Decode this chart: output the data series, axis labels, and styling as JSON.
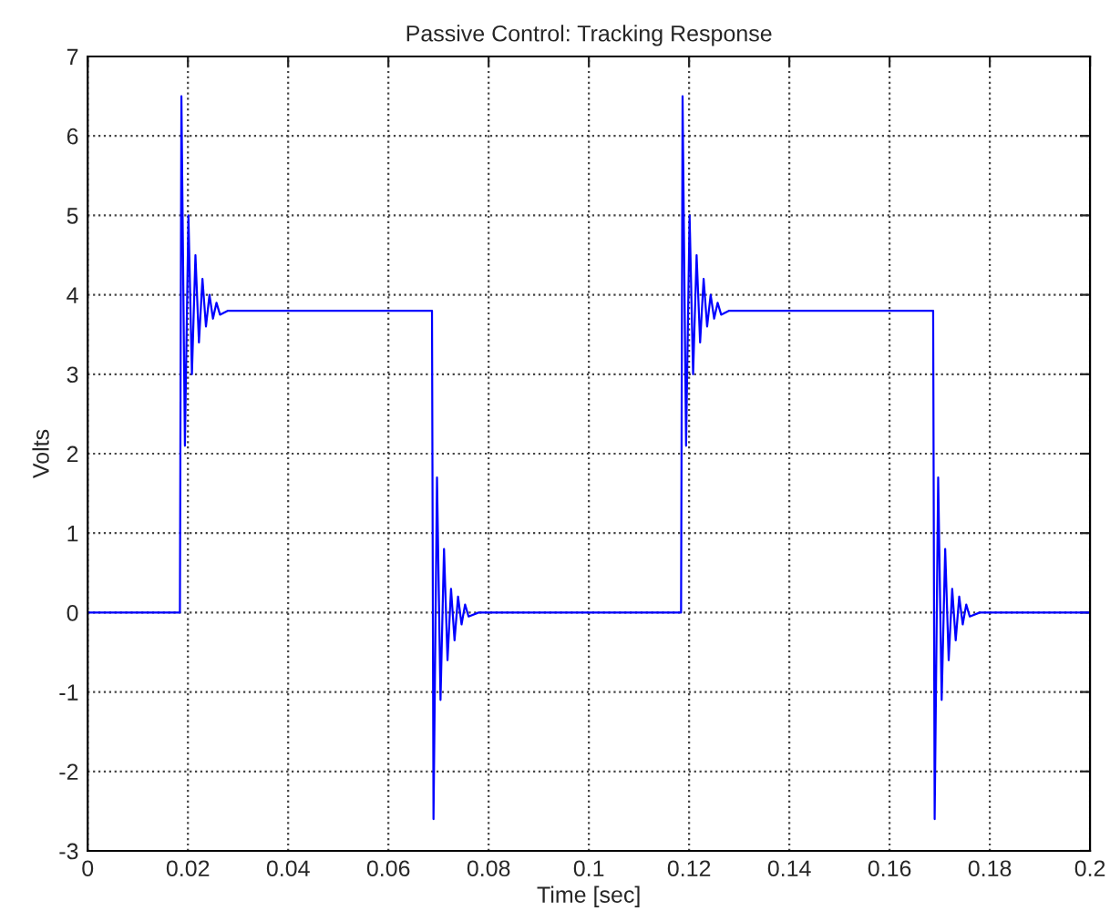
{
  "chart_data": {
    "type": "line",
    "title": "Passive Control: Tracking Response",
    "xlabel": "Time [sec]",
    "ylabel": "Volts",
    "series": [
      {
        "color": "#0000ff",
        "x": [
          0,
          0.0184,
          0.0187,
          0.0194,
          0.0201,
          0.0208,
          0.0215,
          0.0222,
          0.0229,
          0.0236,
          0.0243,
          0.025,
          0.0257,
          0.0264,
          0.028,
          0.0687,
          0.069,
          0.0697,
          0.0704,
          0.0711,
          0.0718,
          0.0725,
          0.0732,
          0.0739,
          0.0746,
          0.0753,
          0.076,
          0.078,
          0.1184,
          0.1187,
          0.1194,
          0.1201,
          0.1208,
          0.1215,
          0.1222,
          0.1229,
          0.1236,
          0.1243,
          0.125,
          0.1257,
          0.1264,
          0.128,
          0.1687,
          0.169,
          0.1697,
          0.1704,
          0.1711,
          0.1718,
          0.1725,
          0.1732,
          0.1739,
          0.1746,
          0.1753,
          0.176,
          0.178,
          0.2
        ],
        "values": [
          0,
          0,
          6.5,
          2.1,
          5.0,
          3.0,
          4.5,
          3.4,
          4.2,
          3.6,
          4.0,
          3.7,
          3.9,
          3.75,
          3.8,
          3.8,
          -2.6,
          1.7,
          -1.1,
          0.8,
          -0.6,
          0.3,
          -0.35,
          0.2,
          -0.15,
          0.1,
          -0.05,
          0,
          0,
          6.5,
          2.1,
          5.0,
          3.0,
          4.5,
          3.4,
          4.2,
          3.6,
          4.0,
          3.7,
          3.9,
          3.75,
          3.8,
          3.8,
          -2.6,
          1.7,
          -1.1,
          0.8,
          -0.6,
          0.3,
          -0.35,
          0.2,
          -0.15,
          0.1,
          -0.05,
          0,
          0
        ]
      }
    ],
    "xlim": [
      0,
      0.2
    ],
    "xticks": [
      0,
      0.02,
      0.04,
      0.06,
      0.08,
      0.1,
      0.12,
      0.14,
      0.16,
      0.18,
      0.2
    ],
    "ylim": [
      -3,
      7
    ],
    "yticks": [
      -3,
      -2,
      -1,
      0,
      1,
      2,
      3,
      4,
      5,
      6,
      7
    ],
    "grid": true,
    "line_style": "solid",
    "marker": "none"
  }
}
